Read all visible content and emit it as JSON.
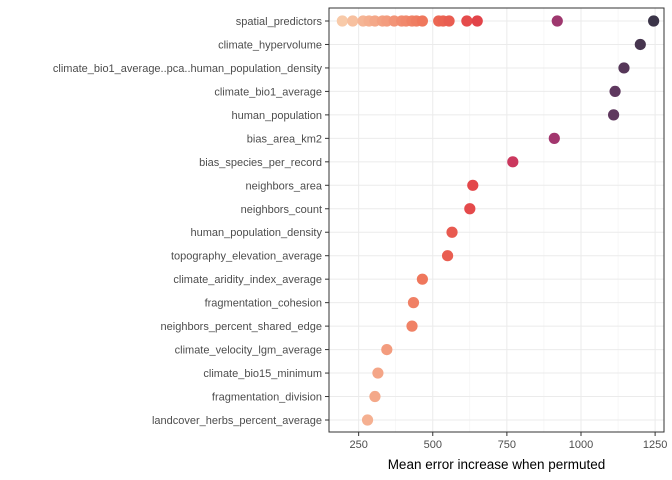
{
  "chart_data": {
    "type": "scatter",
    "xlabel": "Mean error increase when permuted",
    "ylabel": "",
    "xlim": [
      150,
      1280
    ],
    "x_ticks": [
      250,
      500,
      750,
      1000,
      1250
    ],
    "grid": true,
    "legend": "none",
    "color_low": "#f6c8a8",
    "color_high": "#3a3447",
    "categories": [
      "spatial_predictors",
      "climate_hypervolume",
      "climate_bio1_average..pca..human_population_density",
      "climate_bio1_average",
      "human_population",
      "bias_area_km2",
      "bias_species_per_record",
      "neighbors_area",
      "neighbors_count",
      "human_population_density",
      "topography_elevation_average",
      "climate_aridity_index_average",
      "fragmentation_cohesion",
      "neighbors_percent_shared_edge",
      "climate_velocity_lgm_average",
      "climate_bio15_minimum",
      "fragmentation_division",
      "landcover_herbs_percent_average"
    ],
    "points": [
      {
        "y": "spatial_predictors",
        "x": 195
      },
      {
        "y": "spatial_predictors",
        "x": 230
      },
      {
        "y": "spatial_predictors",
        "x": 265
      },
      {
        "y": "spatial_predictors",
        "x": 285
      },
      {
        "y": "spatial_predictors",
        "x": 305
      },
      {
        "y": "spatial_predictors",
        "x": 330
      },
      {
        "y": "spatial_predictors",
        "x": 345
      },
      {
        "y": "spatial_predictors",
        "x": 370
      },
      {
        "y": "spatial_predictors",
        "x": 395
      },
      {
        "y": "spatial_predictors",
        "x": 410
      },
      {
        "y": "spatial_predictors",
        "x": 430
      },
      {
        "y": "spatial_predictors",
        "x": 445
      },
      {
        "y": "spatial_predictors",
        "x": 465
      },
      {
        "y": "spatial_predictors",
        "x": 520
      },
      {
        "y": "spatial_predictors",
        "x": 535
      },
      {
        "y": "spatial_predictors",
        "x": 555
      },
      {
        "y": "spatial_predictors",
        "x": 615
      },
      {
        "y": "spatial_predictors",
        "x": 650
      },
      {
        "y": "spatial_predictors",
        "x": 920
      },
      {
        "y": "spatial_predictors",
        "x": 1245
      },
      {
        "y": "climate_hypervolume",
        "x": 1200
      },
      {
        "y": "climate_bio1_average..pca..human_population_density",
        "x": 1145
      },
      {
        "y": "climate_bio1_average",
        "x": 1115
      },
      {
        "y": "human_population",
        "x": 1110
      },
      {
        "y": "bias_area_km2",
        "x": 910
      },
      {
        "y": "bias_species_per_record",
        "x": 770
      },
      {
        "y": "neighbors_area",
        "x": 635
      },
      {
        "y": "neighbors_count",
        "x": 625
      },
      {
        "y": "human_population_density",
        "x": 565
      },
      {
        "y": "topography_elevation_average",
        "x": 550
      },
      {
        "y": "climate_aridity_index_average",
        "x": 465
      },
      {
        "y": "fragmentation_cohesion",
        "x": 435
      },
      {
        "y": "neighbors_percent_shared_edge",
        "x": 430
      },
      {
        "y": "climate_velocity_lgm_average",
        "x": 345
      },
      {
        "y": "climate_bio15_minimum",
        "x": 315
      },
      {
        "y": "fragmentation_division",
        "x": 305
      },
      {
        "y": "landcover_herbs_percent_average",
        "x": 280
      }
    ]
  }
}
